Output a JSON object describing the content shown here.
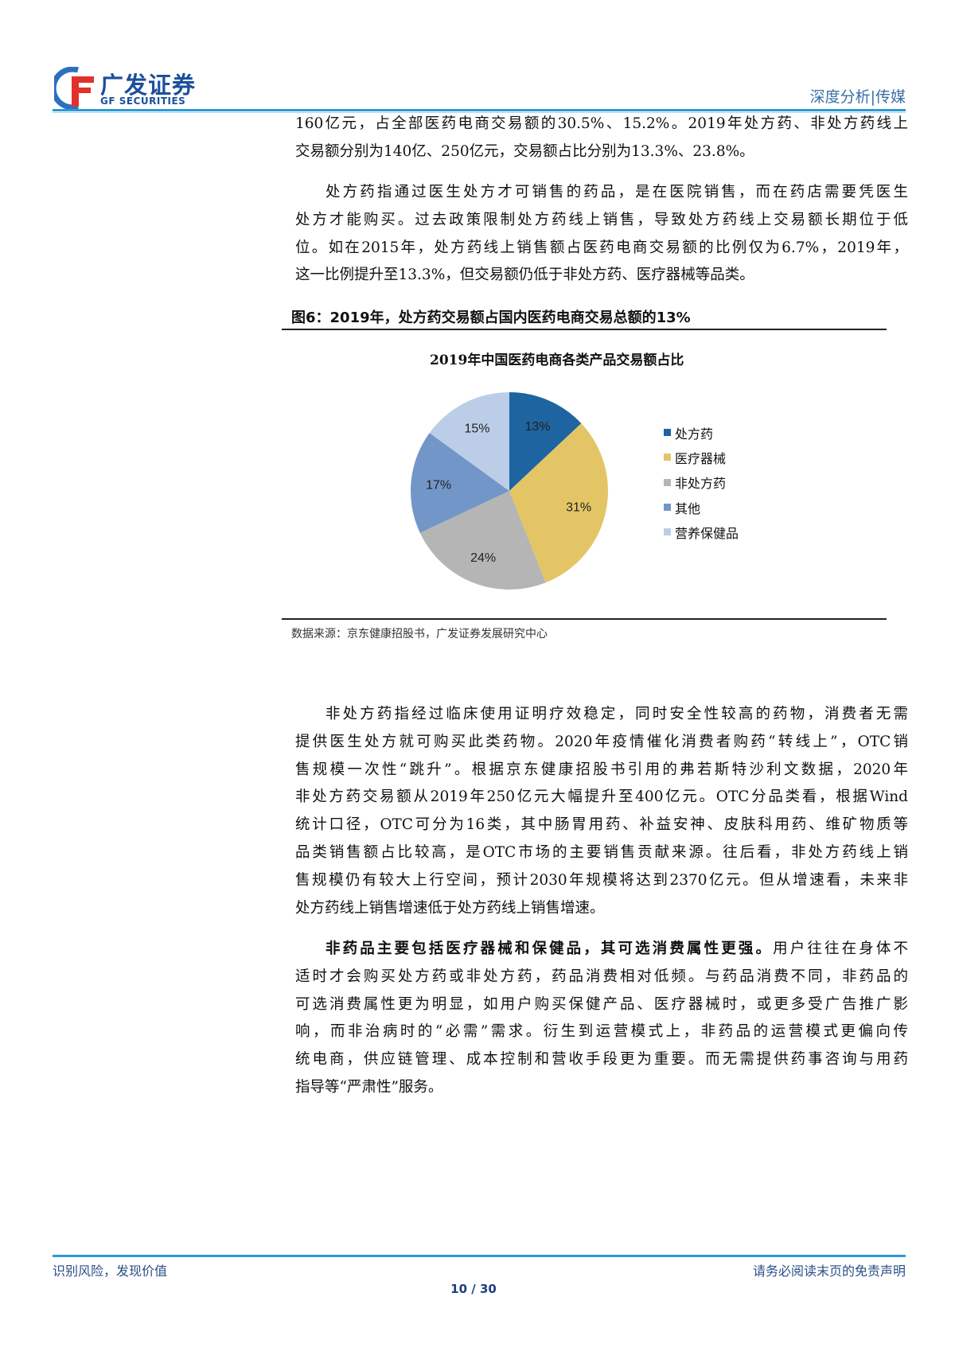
{
  "header": {
    "logo_cn": "广发证券",
    "logo_en": "GF SECURITIES",
    "section": "深度分析|传媒",
    "accent": "#2b9bd6"
  },
  "paragraphs": [
    {
      "indent": false,
      "lines": [
        "160亿元，占全部医药电商交易额的30.5%、15.2%。2019年处方药、非处方药线上",
        "交易额分别为140亿、250亿元，交易额占比分别为13.3%、23.8%。"
      ]
    },
    {
      "indent": true,
      "lines": [
        "处方药指通过医生处方才可销售的药品，是在医院销售，而在药店需要凭医生",
        "处方才能购买。过去政策限制处方药线上销售，导致处方药线上交易额长期位于低",
        "位。如在2015年，处方药线上销售额占医药电商交易额的比例仅为6.7%，2019年，",
        "这一比例提升至13.3%，但交易额仍低于非处方药、医疗器械等品类。"
      ]
    }
  ],
  "figure": {
    "title": "图6：2019年，处方药交易额占国内医药电商交易总额的13%",
    "source": "数据来源：京东健康招股书，广发证券发展研究中心"
  },
  "chart_data": {
    "type": "pie",
    "title": "2019年中国医药电商各类产品交易额占比",
    "legend_position": "right",
    "series": [
      {
        "name": "处方药",
        "value": 13,
        "label": "13%",
        "color": "#1d64a1"
      },
      {
        "name": "医疗器械",
        "value": 31,
        "label": "31%",
        "color": "#e4c565"
      },
      {
        "name": "非处方药",
        "value": 24,
        "label": "24%",
        "color": "#b5b5b5"
      },
      {
        "name": "其他",
        "value": 17,
        "label": "17%",
        "color": "#7396c8"
      },
      {
        "name": "营养保健品",
        "value": 15,
        "label": "15%",
        "color": "#bccee7"
      }
    ]
  },
  "paragraphs2": [
    {
      "indent": true,
      "lines": [
        "非处方药指经过临床使用证明疗效稳定，同时安全性较高的药物，消费者无需",
        "提供医生处方就可购买此类药物。2020年疫情催化消费者购药“转线上”，OTC销",
        "售规模一次性“跳升”。根据京东健康招股书引用的弗若斯特沙利文数据，2020年",
        "非处方药交易额从2019年250亿元大幅提升至400亿元。OTC分品类看，根据Wind",
        "统计口径，OTC可分为16类，其中肠胃用药、补益安神、皮肤科用药、维矿物质等",
        "品类销售额占比较高，是OTC市场的主要销售贡献来源。往后看，非处方药线上销",
        "售规模仍有较大上行空间，预计2030年规模将达到2370亿元。但从增速看，未来非",
        "处方药线上销售增速低于处方药线上销售增速。"
      ]
    },
    {
      "indent": true,
      "bold_lead": "非药品主要包括医疗器械和保健品，其可选消费属性更强。",
      "lines": [
        "用户往往在身体不",
        "适时才会购买处方药或非处方药，药品消费相对低频。与药品消费不同，非药品的",
        "可选消费属性更为明显，如用户购买保健产品、医疗器械时，或更多受广告推广影",
        "响，而非治病时的“必需”需求。衍生到运营模式上，非药品的运营模式更偏向传",
        "统电商，供应链管理、成本控制和营收手段更为重要。而无需提供药事咨询与用药",
        "指导等“严肃性”服务。"
      ]
    }
  ],
  "footer": {
    "left": "识别风险，发现价值",
    "right": "请务必阅读末页的免责声明",
    "page": "10 / 30"
  }
}
